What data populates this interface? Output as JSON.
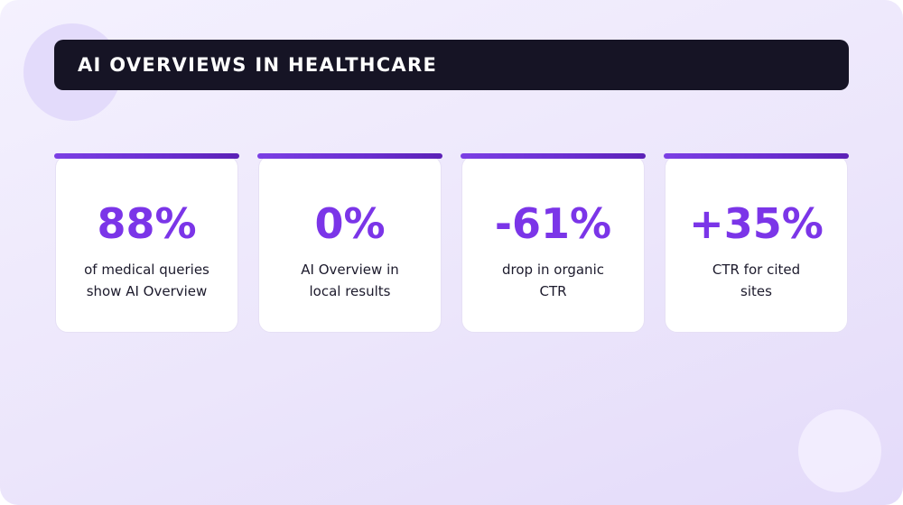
{
  "title": "AI OVERVIEWS IN HEALTHCARE",
  "colors": {
    "title_bar_bg": "#161425",
    "accent": "#7b35e8",
    "card_bg": "#ffffff",
    "page_bg": "#efeafc"
  },
  "stats": [
    {
      "value": "88%",
      "description_lines": [
        "of medical queries",
        "show AI Overview"
      ]
    },
    {
      "value": "0%",
      "description_lines": [
        "AI Overview in",
        "local results"
      ]
    },
    {
      "value": "-61%",
      "description_lines": [
        "drop in organic",
        "CTR"
      ]
    },
    {
      "value": "+35%",
      "description_lines": [
        "CTR for cited",
        "sites"
      ]
    }
  ]
}
